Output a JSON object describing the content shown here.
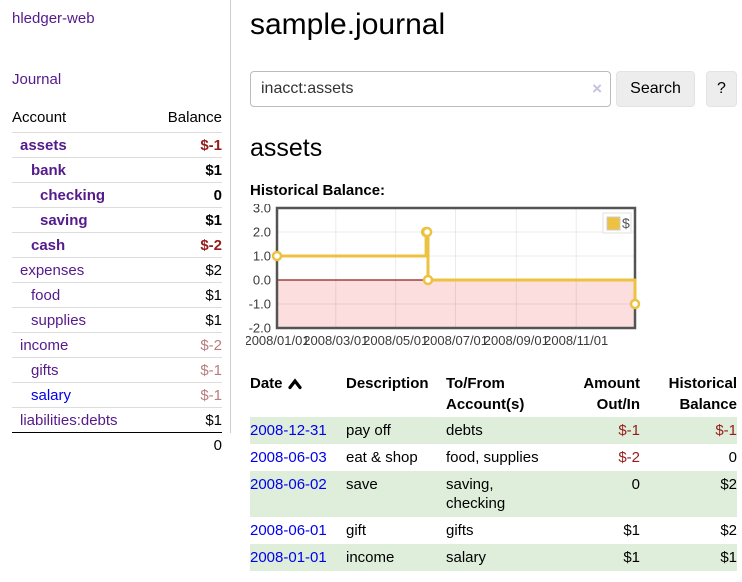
{
  "app": {
    "title": "hledger-web"
  },
  "sidebar": {
    "journal_link": "Journal",
    "accounts": {
      "account_header": "Account",
      "balance_header": "Balance",
      "rows": [
        {
          "account": "assets",
          "balance": "$-1"
        },
        {
          "account": "bank",
          "balance": "$1"
        },
        {
          "account": "checking",
          "balance": "0"
        },
        {
          "account": "saving",
          "balance": "$1"
        },
        {
          "account": "cash",
          "balance": "$-2"
        },
        {
          "account": "expenses",
          "balance": "$2"
        },
        {
          "account": "food",
          "balance": "$1"
        },
        {
          "account": "supplies",
          "balance": "$1"
        },
        {
          "account": "income",
          "balance": "$-2"
        },
        {
          "account": "gifts",
          "balance": "$-1"
        },
        {
          "account": "salary",
          "balance": "$-1"
        },
        {
          "account": "liabilities:debts",
          "balance": "$1"
        }
      ],
      "total": "0"
    }
  },
  "main": {
    "title": "sample.journal",
    "search": {
      "value": "inacct:assets",
      "clear_icon": "×",
      "button_label": "Search",
      "help_label": "?"
    },
    "account_heading": "assets"
  },
  "chart_data": {
    "type": "line",
    "title": "Historical Balance:",
    "series": [
      {
        "name": "$",
        "color": "#edc240",
        "step": true,
        "points": [
          [
            "2008-01-01",
            1
          ],
          [
            "2008-06-01",
            2
          ],
          [
            "2008-06-02",
            2
          ],
          [
            "2008-06-03",
            0
          ],
          [
            "2008-12-31",
            -1
          ]
        ]
      }
    ],
    "xlim": [
      "2008-01-01",
      "2008-12-31"
    ],
    "ylim": [
      -2,
      3
    ],
    "yticks": [
      3,
      2,
      1,
      0,
      -1,
      -2
    ],
    "ytick_labels": [
      "3.0",
      "2.0",
      "1.0",
      "0.0",
      "-1.0",
      "-2.0"
    ],
    "xticks": [
      "2008-01-01",
      "2008-03-01",
      "2008-05-01",
      "2008-07-01",
      "2008-09-01",
      "2008-11-01"
    ],
    "xtick_labels": [
      "2008/01/01",
      "2008/03/01",
      "2008/05/01",
      "2008/07/01",
      "2008/09/01",
      "2008/11/01"
    ],
    "grid": true,
    "legend_position": "top-right",
    "negative_fill": "#fcdede",
    "zero_line_color": "#8f1f1f",
    "border_color": "#545454",
    "tick_label_color": "#3a3a3a"
  },
  "register": {
    "headers": {
      "date": "Date",
      "description": "Description",
      "tofrom": "To/From Account(s)",
      "amount": "Amount Out/In",
      "historical": "Historical Balance"
    },
    "rows": [
      {
        "date": "2008-12-31",
        "description": "pay off",
        "accounts": "debts",
        "amount": "$-1",
        "historical": "$-1"
      },
      {
        "date": "2008-06-03",
        "description": "eat & shop",
        "accounts": "food, supplies",
        "amount": "$-2",
        "historical": "0"
      },
      {
        "date": "2008-06-02",
        "description": "save",
        "accounts": "saving, checking",
        "amount": "0",
        "historical": "$2"
      },
      {
        "date": "2008-06-01",
        "description": "gift",
        "accounts": "gifts",
        "amount": "$1",
        "historical": "$2"
      },
      {
        "date": "2008-01-01",
        "description": "income",
        "accounts": "salary",
        "amount": "$1",
        "historical": "$1"
      }
    ]
  }
}
